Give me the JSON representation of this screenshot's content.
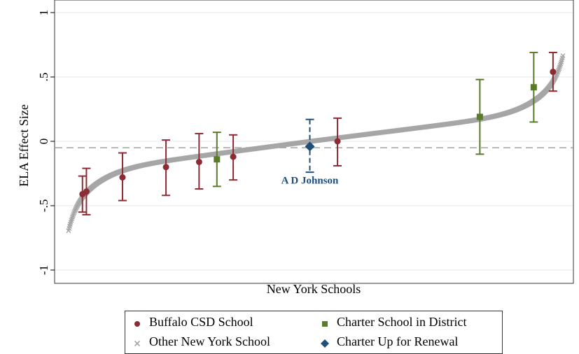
{
  "chart_data": {
    "type": "scatter",
    "title": "",
    "xlabel": "New York Schools",
    "ylabel": "ELA Effect Size",
    "ylim": [
      -1.1,
      1.1
    ],
    "yticks": [
      1,
      0.5,
      0,
      -0.5,
      -1
    ],
    "ytick_labels": [
      "1",
      ".5",
      "0",
      "-.5",
      "-1"
    ],
    "grid": true,
    "reference_line": -0.05,
    "colors": {
      "buffalo": "#8b2b32",
      "charter": "#5a7b2a",
      "other": "#a6a6a6",
      "renewal": "#1f4e79",
      "grid": "#e5eef3",
      "refline": "#a9a9a9"
    },
    "background_distribution": {
      "name": "Other New York School",
      "marker": "x",
      "count": 900,
      "min": -0.85,
      "max": 0.82
    },
    "series": [
      {
        "name": "Buffalo CSD School",
        "marker": "circle",
        "points": [
          {
            "rank": 0.028,
            "y": -0.41,
            "lo": -0.55,
            "hi": -0.27
          },
          {
            "rank": 0.036,
            "y": -0.39,
            "lo": -0.57,
            "hi": -0.21
          },
          {
            "rank": 0.109,
            "y": -0.28,
            "lo": -0.46,
            "hi": -0.09
          },
          {
            "rank": 0.197,
            "y": -0.2,
            "lo": -0.42,
            "hi": 0.01
          },
          {
            "rank": 0.264,
            "y": -0.16,
            "lo": -0.37,
            "hi": 0.06
          },
          {
            "rank": 0.333,
            "y": -0.12,
            "lo": -0.3,
            "hi": 0.05
          },
          {
            "rank": 0.544,
            "y": 0.0,
            "lo": -0.19,
            "hi": 0.18
          },
          {
            "rank": 0.98,
            "y": 0.54,
            "lo": 0.39,
            "hi": 0.69
          }
        ]
      },
      {
        "name": "Charter School in District",
        "marker": "square",
        "points": [
          {
            "rank": 0.3,
            "y": -0.14,
            "lo": -0.35,
            "hi": 0.07
          },
          {
            "rank": 0.832,
            "y": 0.19,
            "lo": -0.1,
            "hi": 0.48
          },
          {
            "rank": 0.941,
            "y": 0.42,
            "lo": 0.15,
            "hi": 0.69
          }
        ]
      },
      {
        "name": "Charter Up for Renewal",
        "marker": "diamond",
        "points": [
          {
            "rank": 0.488,
            "y": -0.04,
            "lo": -0.24,
            "hi": 0.17
          }
        ]
      }
    ],
    "annotations": [
      {
        "text": "A D Johnson",
        "anchor_rank": 0.488,
        "anchor_y": -0.33
      }
    ]
  },
  "legend": {
    "items": [
      {
        "label": "Buffalo CSD School",
        "symbol": "circle",
        "color": "#8b2b32"
      },
      {
        "label": "Charter School in District",
        "symbol": "square",
        "color": "#5a7b2a"
      },
      {
        "label": "Other New York School",
        "symbol": "x",
        "color": "#a6a6a6"
      },
      {
        "label": "Charter Up for Renewal",
        "symbol": "diamond",
        "color": "#1f4e79"
      }
    ]
  }
}
